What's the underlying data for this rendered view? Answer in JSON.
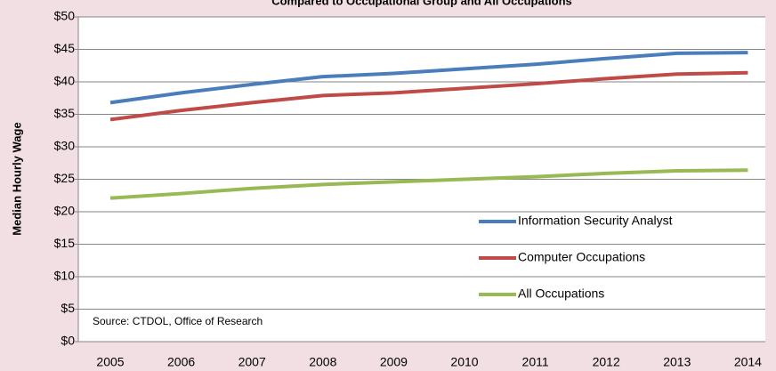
{
  "chart_data": {
    "type": "line",
    "title": "Compared to Occupational Group and All Occupations",
    "y_label": "Median Hourly Wage",
    "annotation": "Source: CTDOL, Office of Research",
    "categories": [
      "2005",
      "2006",
      "2007",
      "2008",
      "2009",
      "2010",
      "2011",
      "2012",
      "2013",
      "2014"
    ],
    "series": [
      {
        "name": "Information Security Analyst",
        "color": "#4a7ebb",
        "values": [
          36.8,
          38.3,
          39.6,
          40.8,
          41.3,
          42.0,
          42.7,
          43.6,
          44.4,
          44.5
        ]
      },
      {
        "name": "Computer Occupations",
        "color": "#be4b48",
        "values": [
          34.2,
          35.6,
          36.8,
          37.9,
          38.3,
          39.0,
          39.7,
          40.5,
          41.2,
          41.4
        ]
      },
      {
        "name": "All Occupations",
        "color": "#98b954",
        "values": [
          22.1,
          22.8,
          23.6,
          24.2,
          24.6,
          25.0,
          25.4,
          25.9,
          26.3,
          26.4
        ]
      }
    ],
    "ylim": [
      0,
      50
    ],
    "yticks": [
      {
        "value": 0,
        "label": "$0"
      },
      {
        "value": 5,
        "label": "$5"
      },
      {
        "value": 10,
        "label": "$10"
      },
      {
        "value": 15,
        "label": "$15"
      },
      {
        "value": 20,
        "label": "$20"
      },
      {
        "value": 25,
        "label": "$25"
      },
      {
        "value": 30,
        "label": "$30"
      },
      {
        "value": 35,
        "label": "$35"
      },
      {
        "value": 40,
        "label": "$40"
      },
      {
        "value": 45,
        "label": "$45"
      },
      {
        "value": 50,
        "label": "$50"
      }
    ],
    "grid": true,
    "legend": "lower right"
  }
}
